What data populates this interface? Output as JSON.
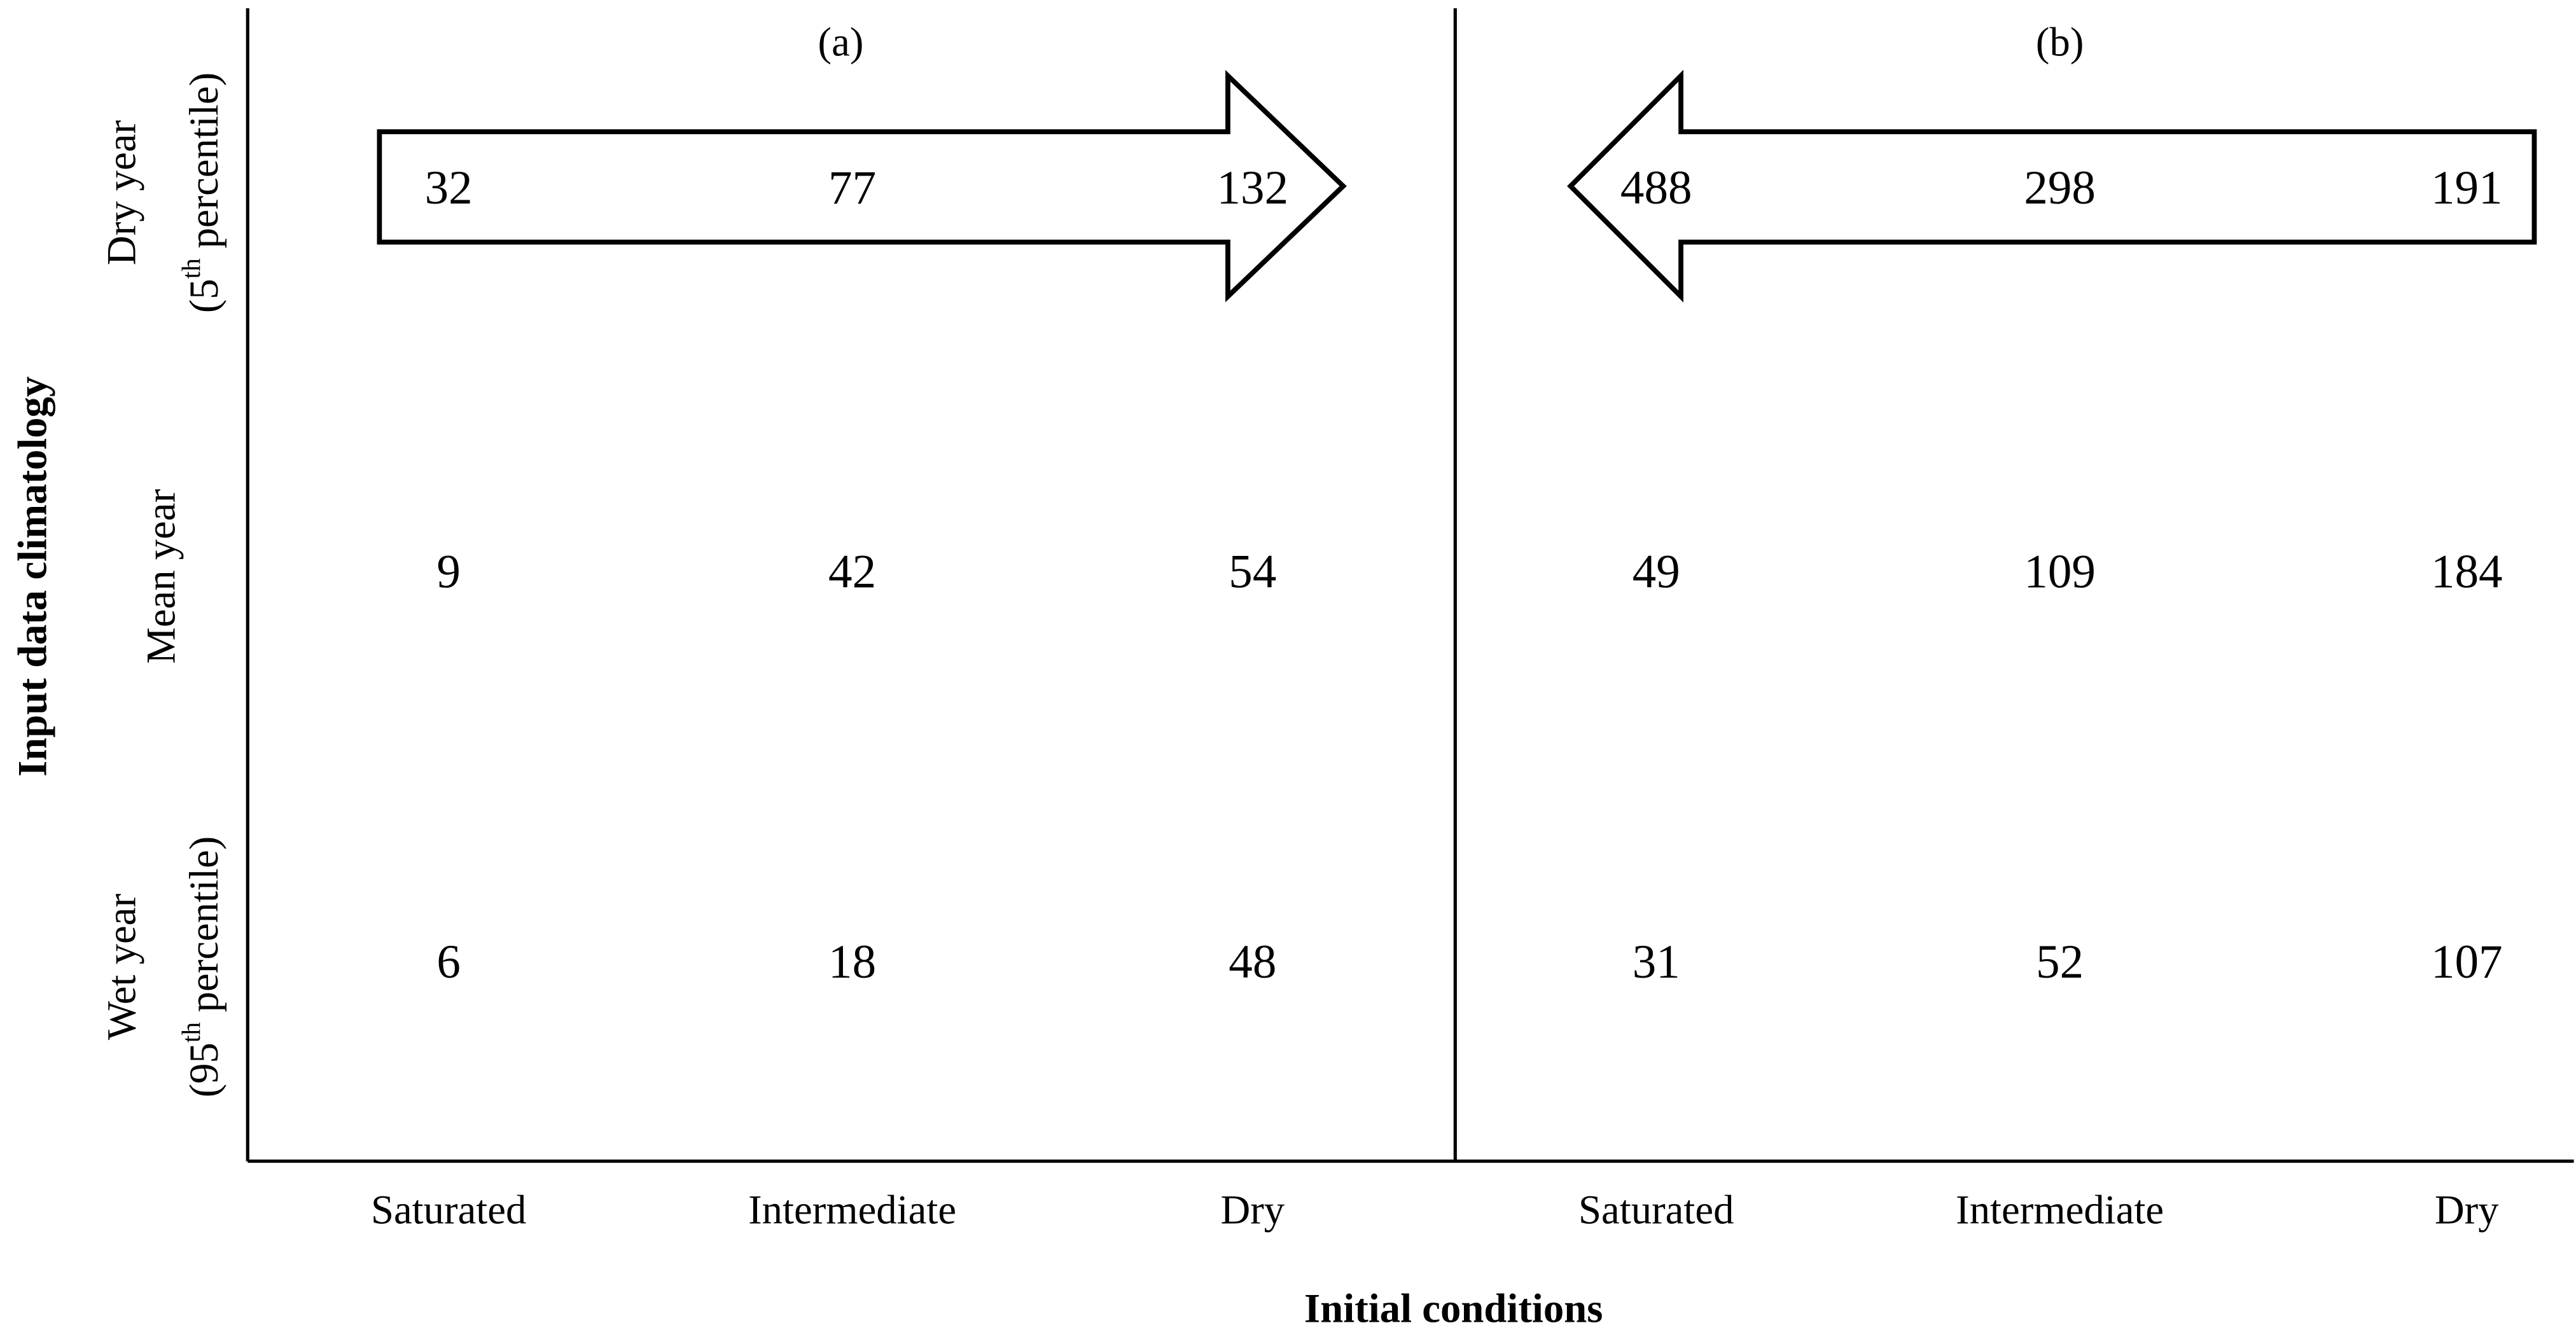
{
  "axes": {
    "y_label": "Input data climatology",
    "x_label": "Initial conditions"
  },
  "row_labels": [
    {
      "line1": "Dry year",
      "line2": [
        "(5",
        "th",
        "percentile)"
      ]
    },
    {
      "line1": "Mean year"
    },
    {
      "line1": "Wet year",
      "line2": [
        "(95",
        "th",
        "percentile)"
      ]
    }
  ],
  "panels": [
    {
      "label": "(a)",
      "columns": [
        "Saturated",
        "Intermediate",
        "Dry"
      ],
      "rows": [
        [
          32,
          77,
          132
        ],
        [
          9,
          42,
          54
        ],
        [
          6,
          18,
          48
        ]
      ]
    },
    {
      "label": "(b)",
      "columns": [
        "Saturated",
        "Intermediate",
        "Dry"
      ],
      "rows": [
        [
          488,
          298,
          191
        ],
        [
          49,
          109,
          184
        ],
        [
          31,
          52,
          107
        ]
      ]
    }
  ]
}
